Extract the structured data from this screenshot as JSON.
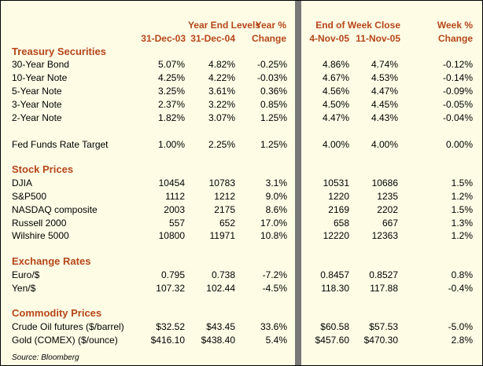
{
  "colors": {
    "panel_bg": "#fffce6",
    "heading": "#b5461a",
    "divider": "#777777"
  },
  "header": {
    "year_end_levels": "Year End Levels",
    "year_pct": "Year %",
    "change": "Change",
    "end_of_week_close": "End of Week Close",
    "week_pct": "Week %",
    "date_1": "31-Dec-03",
    "date_2": "31-Dec-04",
    "date_3": "4-Nov-05",
    "date_4": "11-Nov-05"
  },
  "sections": [
    {
      "title": "Treasury Securities",
      "rows": [
        {
          "label": "30-Year Bond",
          "v1": "5.07%",
          "v2": "4.82%",
          "v3": "-0.25%",
          "v4": "4.86%",
          "v5": "4.74%",
          "v6": "-0.12%"
        },
        {
          "label": "10-Year Note",
          "v1": "4.25%",
          "v2": "4.22%",
          "v3": "-0.03%",
          "v4": "4.67%",
          "v5": "4.53%",
          "v6": "-0.14%"
        },
        {
          "label": "5-Year Note",
          "v1": "3.25%",
          "v2": "3.61%",
          "v3": "0.36%",
          "v4": "4.56%",
          "v5": "4.47%",
          "v6": "-0.09%"
        },
        {
          "label": "3-Year Note",
          "v1": "2.37%",
          "v2": "3.22%",
          "v3": "0.85%",
          "v4": "4.50%",
          "v5": "4.45%",
          "v6": "-0.05%"
        },
        {
          "label": "2-Year Note",
          "v1": "1.82%",
          "v2": "3.07%",
          "v3": "1.25%",
          "v4": "4.47%",
          "v5": "4.43%",
          "v6": "-0.04%"
        },
        {
          "label": "Fed Funds Rate Target",
          "v1": "1.00%",
          "v2": "2.25%",
          "v3": "1.25%",
          "v4": "4.00%",
          "v5": "4.00%",
          "v6": "0.00%"
        }
      ]
    },
    {
      "title": "Stock Prices",
      "rows": [
        {
          "label": "DJIA",
          "v1": "10454",
          "v2": "10783",
          "v3": "3.1%",
          "v4": "10531",
          "v5": "10686",
          "v6": "1.5%"
        },
        {
          "label": "S&P500",
          "v1": "1112",
          "v2": "1212",
          "v3": "9.0%",
          "v4": "1220",
          "v5": "1235",
          "v6": "1.2%"
        },
        {
          "label": "NASDAQ composite",
          "v1": "2003",
          "v2": "2175",
          "v3": "8.6%",
          "v4": "2169",
          "v5": "2202",
          "v6": "1.5%"
        },
        {
          "label": "Russell 2000",
          "v1": "557",
          "v2": "652",
          "v3": "17.0%",
          "v4": "658",
          "v5": "667",
          "v6": "1.3%"
        },
        {
          "label": "Wilshire 5000",
          "v1": "10800",
          "v2": "11971",
          "v3": "10.8%",
          "v4": "12220",
          "v5": "12363",
          "v6": "1.2%"
        }
      ]
    },
    {
      "title": "Exchange Rates",
      "rows": [
        {
          "label": "Euro/$",
          "v1": "0.795",
          "v2": "0.738",
          "v3": "-7.2%",
          "v4": "0.8457",
          "v5": "0.8527",
          "v6": "0.8%"
        },
        {
          "label": "Yen/$",
          "v1": "107.32",
          "v2": "102.44",
          "v3": "-4.5%",
          "v4": "118.30",
          "v5": "117.88",
          "v6": "-0.4%"
        }
      ]
    },
    {
      "title": "Commodity Prices",
      "rows": [
        {
          "label": "Crude Oil futures ($/barrel)",
          "v1": "$32.52",
          "v2": "$43.45",
          "v3": "33.6%",
          "v4": "$60.58",
          "v5": "$57.53",
          "v6": "-5.0%"
        },
        {
          "label": "Gold (COMEX) ($/ounce)",
          "v1": "$416.10",
          "v2": "$438.40",
          "v3": "5.4%",
          "v4": "$457.60",
          "v5": "$470.30",
          "v6": "2.8%"
        }
      ]
    }
  ],
  "source": "Source: Bloomberg"
}
